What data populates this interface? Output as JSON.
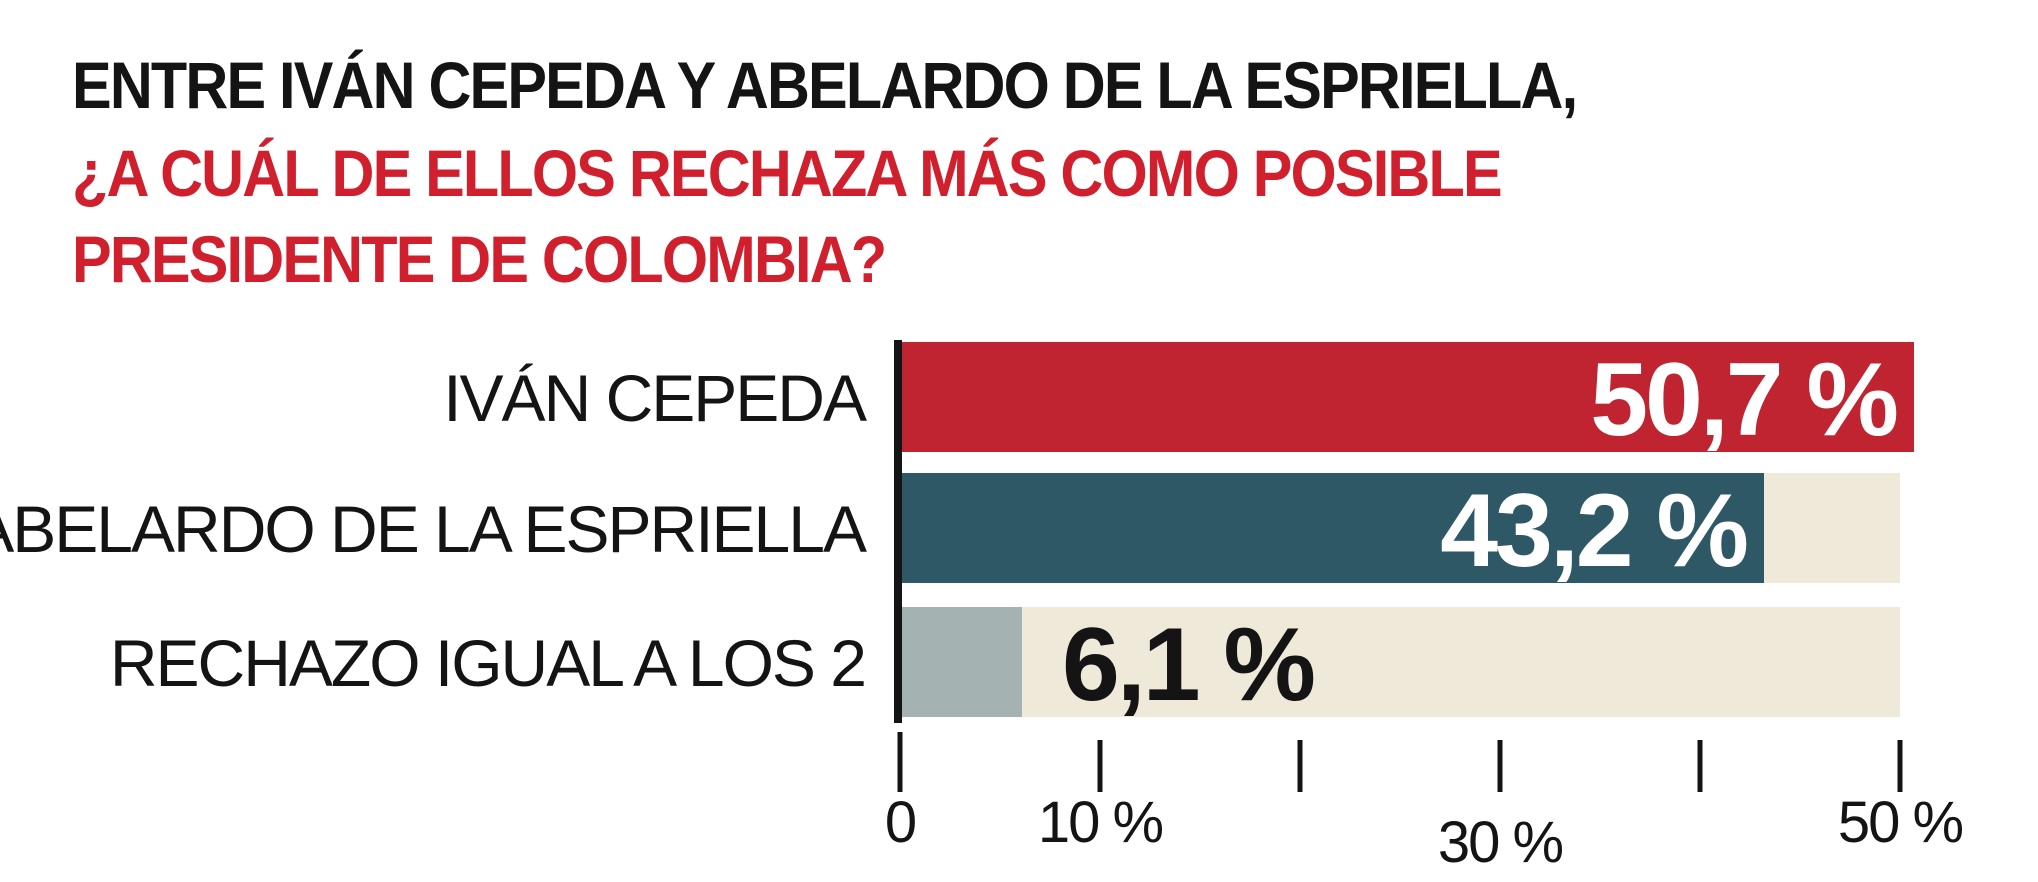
{
  "title": {
    "line1": "ENTRE IVÁN CEPEDA Y ABELARDO DE LA ESPRIELLA,",
    "line2": "¿A CUÁL DE ELLOS RECHAZA MÁS COMO POSIBLE",
    "line3": "PRESIDENTE DE COLOMBIA?"
  },
  "colors": {
    "title_dark": "#141414",
    "title_red": "#d0202e",
    "bar_cepeda": "#bf2430",
    "bar_espriella": "#2e5866",
    "bar_ambos": "#a4b3b1",
    "bar_track": "#eee9d8"
  },
  "chart_data": {
    "type": "bar",
    "orientation": "horizontal",
    "categories": [
      "IVÁN CEPEDA",
      "ABELARDO DE LA ESPRIELLA",
      "RECHAZO IGUAL A LOS 2"
    ],
    "values": [
      50.7,
      43.2,
      6.1
    ],
    "value_labels": [
      "50,7 %",
      "43,2 %",
      "6,1 %"
    ],
    "xlim": [
      0,
      50
    ],
    "xticks": [
      0,
      10,
      20,
      30,
      40,
      50
    ],
    "tick_labels": [
      {
        "value": 0,
        "label": "0"
      },
      {
        "value": 10,
        "label": "10 %"
      },
      {
        "value": 30,
        "label": "30 %"
      },
      {
        "value": 50,
        "label": "50 %"
      }
    ],
    "grid": false
  }
}
